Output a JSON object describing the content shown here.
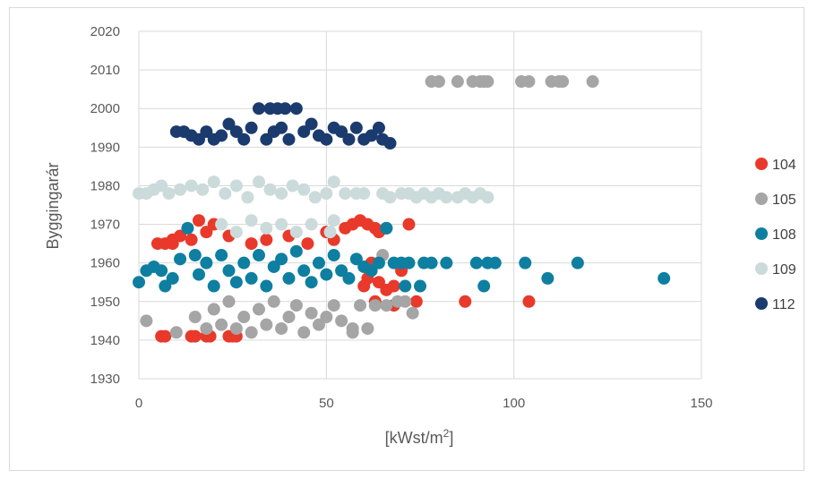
{
  "chart_data": {
    "type": "scatter",
    "title": "",
    "xlabel": "[kWst/m",
    "xlabel_sup": "2",
    "xlabel_end": "]",
    "ylabel": "Byggingarár",
    "xlim": [
      0,
      150
    ],
    "ylim": [
      1930,
      2020
    ],
    "xticks": [
      0,
      50,
      100,
      150
    ],
    "yticks": [
      1930,
      1940,
      1950,
      1960,
      1970,
      1980,
      1990,
      2000,
      2010,
      2020
    ],
    "grid": true,
    "legend_position": "right",
    "series": [
      {
        "name": "104",
        "color": "#e8392b",
        "points": [
          [
            6,
            1941
          ],
          [
            7,
            1941
          ],
          [
            14,
            1941
          ],
          [
            15,
            1941
          ],
          [
            18,
            1941
          ],
          [
            19,
            1941
          ],
          [
            24,
            1941
          ],
          [
            25,
            1941
          ],
          [
            26,
            1941
          ],
          [
            5,
            1965
          ],
          [
            7,
            1965
          ],
          [
            9,
            1966
          ],
          [
            9,
            1965
          ],
          [
            11,
            1967
          ],
          [
            14,
            1966
          ],
          [
            16,
            1971
          ],
          [
            18,
            1968
          ],
          [
            20,
            1970
          ],
          [
            24,
            1967
          ],
          [
            30,
            1965
          ],
          [
            34,
            1966
          ],
          [
            40,
            1967
          ],
          [
            45,
            1965
          ],
          [
            50,
            1968
          ],
          [
            52,
            1966
          ],
          [
            55,
            1969
          ],
          [
            57,
            1970
          ],
          [
            59,
            1971
          ],
          [
            61,
            1970
          ],
          [
            63,
            1969
          ],
          [
            64,
            1968
          ],
          [
            66,
            1969
          ],
          [
            62,
            1960
          ],
          [
            61,
            1956
          ],
          [
            60,
            1954
          ],
          [
            64,
            1955
          ],
          [
            68,
            1954
          ],
          [
            66,
            1953
          ],
          [
            70,
            1958
          ],
          [
            72,
            1970
          ],
          [
            74,
            1950
          ],
          [
            87,
            1950
          ],
          [
            104,
            1950
          ],
          [
            68,
            1949
          ],
          [
            63,
            1950
          ]
        ]
      },
      {
        "name": "105",
        "color": "#a5a5a6",
        "points": [
          [
            2,
            1945
          ],
          [
            10,
            1942
          ],
          [
            15,
            1946
          ],
          [
            18,
            1943
          ],
          [
            20,
            1948
          ],
          [
            22,
            1944
          ],
          [
            24,
            1950
          ],
          [
            26,
            1943
          ],
          [
            28,
            1946
          ],
          [
            30,
            1942
          ],
          [
            32,
            1948
          ],
          [
            34,
            1944
          ],
          [
            36,
            1950
          ],
          [
            38,
            1943
          ],
          [
            40,
            1946
          ],
          [
            42,
            1949
          ],
          [
            44,
            1942
          ],
          [
            46,
            1947
          ],
          [
            48,
            1944
          ],
          [
            50,
            1946
          ],
          [
            52,
            1949
          ],
          [
            54,
            1945
          ],
          [
            57,
            1942
          ],
          [
            57,
            1943
          ],
          [
            59,
            1949
          ],
          [
            61,
            1943
          ],
          [
            63,
            1949
          ],
          [
            66,
            1949
          ],
          [
            69,
            1950
          ],
          [
            71,
            1950
          ],
          [
            73,
            1947
          ],
          [
            65,
            1962
          ],
          [
            78,
            2007
          ],
          [
            80,
            2007
          ],
          [
            85,
            2007
          ],
          [
            89,
            2007
          ],
          [
            91,
            2007
          ],
          [
            92,
            2007
          ],
          [
            93,
            2007
          ],
          [
            102,
            2007
          ],
          [
            104,
            2007
          ],
          [
            110,
            2007
          ],
          [
            112,
            2007
          ],
          [
            113,
            2007
          ],
          [
            121,
            2007
          ]
        ]
      },
      {
        "name": "108",
        "color": "#0e7fa0",
        "points": [
          [
            0,
            1955
          ],
          [
            2,
            1958
          ],
          [
            4,
            1959
          ],
          [
            6,
            1958
          ],
          [
            7,
            1954
          ],
          [
            9,
            1956
          ],
          [
            11,
            1961
          ],
          [
            13,
            1969
          ],
          [
            15,
            1962
          ],
          [
            16,
            1957
          ],
          [
            18,
            1960
          ],
          [
            20,
            1954
          ],
          [
            22,
            1962
          ],
          [
            24,
            1958
          ],
          [
            26,
            1955
          ],
          [
            28,
            1960
          ],
          [
            30,
            1956
          ],
          [
            32,
            1962
          ],
          [
            34,
            1954
          ],
          [
            36,
            1959
          ],
          [
            38,
            1961
          ],
          [
            40,
            1956
          ],
          [
            42,
            1963
          ],
          [
            44,
            1958
          ],
          [
            46,
            1955
          ],
          [
            48,
            1960
          ],
          [
            50,
            1957
          ],
          [
            52,
            1962
          ],
          [
            54,
            1958
          ],
          [
            56,
            1956
          ],
          [
            58,
            1961
          ],
          [
            60,
            1959
          ],
          [
            62,
            1958
          ],
          [
            64,
            1960
          ],
          [
            66,
            1969
          ],
          [
            68,
            1960
          ],
          [
            70,
            1960
          ],
          [
            71,
            1954
          ],
          [
            72,
            1960
          ],
          [
            76,
            1960
          ],
          [
            78,
            1960
          ],
          [
            82,
            1960
          ],
          [
            90,
            1960
          ],
          [
            93,
            1960
          ],
          [
            95,
            1960
          ],
          [
            103,
            1960
          ],
          [
            109,
            1956
          ],
          [
            117,
            1960
          ],
          [
            140,
            1956
          ],
          [
            92,
            1954
          ],
          [
            75,
            1954
          ]
        ]
      },
      {
        "name": "109",
        "color": "#cbdadb",
        "points": [
          [
            0,
            1978
          ],
          [
            2,
            1978
          ],
          [
            4,
            1979
          ],
          [
            6,
            1980
          ],
          [
            8,
            1978
          ],
          [
            11,
            1979
          ],
          [
            14,
            1980
          ],
          [
            17,
            1979
          ],
          [
            20,
            1981
          ],
          [
            23,
            1978
          ],
          [
            26,
            1980
          ],
          [
            29,
            1977
          ],
          [
            32,
            1981
          ],
          [
            35,
            1979
          ],
          [
            38,
            1978
          ],
          [
            41,
            1980
          ],
          [
            44,
            1979
          ],
          [
            47,
            1977
          ],
          [
            50,
            1978
          ],
          [
            52,
            1981
          ],
          [
            55,
            1978
          ],
          [
            58,
            1978
          ],
          [
            60,
            1978
          ],
          [
            65,
            1978
          ],
          [
            67,
            1977
          ],
          [
            70,
            1978
          ],
          [
            72,
            1978
          ],
          [
            74,
            1977
          ],
          [
            76,
            1978
          ],
          [
            78,
            1977
          ],
          [
            80,
            1978
          ],
          [
            82,
            1977
          ],
          [
            85,
            1977
          ],
          [
            87,
            1978
          ],
          [
            89,
            1977
          ],
          [
            91,
            1978
          ],
          [
            93,
            1977
          ],
          [
            22,
            1970
          ],
          [
            26,
            1968
          ],
          [
            30,
            1971
          ],
          [
            34,
            1969
          ],
          [
            38,
            1970
          ],
          [
            42,
            1968
          ],
          [
            46,
            1970
          ],
          [
            51,
            1968
          ],
          [
            52,
            1971
          ]
        ]
      },
      {
        "name": "112",
        "color": "#1b3b6f",
        "points": [
          [
            10,
            1994
          ],
          [
            12,
            1994
          ],
          [
            14,
            1993
          ],
          [
            16,
            1992
          ],
          [
            18,
            1994
          ],
          [
            20,
            1992
          ],
          [
            22,
            1993
          ],
          [
            24,
            1996
          ],
          [
            26,
            1994
          ],
          [
            28,
            1992
          ],
          [
            30,
            1995
          ],
          [
            32,
            2000
          ],
          [
            34,
            1992
          ],
          [
            35,
            2000
          ],
          [
            36,
            1994
          ],
          [
            37,
            2000
          ],
          [
            38,
            1995
          ],
          [
            39,
            2000
          ],
          [
            40,
            1992
          ],
          [
            42,
            2000
          ],
          [
            44,
            1994
          ],
          [
            46,
            1996
          ],
          [
            48,
            1993
          ],
          [
            50,
            1992
          ],
          [
            52,
            1995
          ],
          [
            54,
            1994
          ],
          [
            56,
            1992
          ],
          [
            58,
            1995
          ],
          [
            60,
            1992
          ],
          [
            62,
            1993
          ],
          [
            64,
            1995
          ],
          [
            65,
            1992
          ],
          [
            67,
            1991
          ]
        ]
      }
    ]
  }
}
